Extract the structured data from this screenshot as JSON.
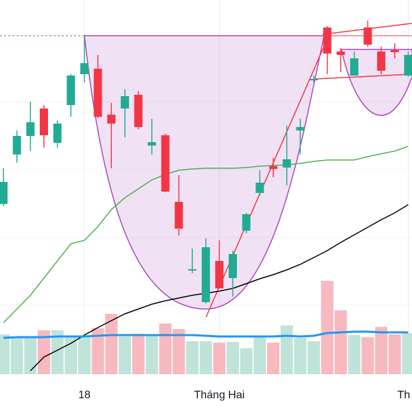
{
  "chart_data": {
    "type": "candlestick",
    "categories": [
      null,
      null,
      null,
      null,
      null,
      null,
      "18",
      null,
      null,
      null,
      null,
      null,
      null,
      null,
      null,
      null,
      "Tháng Hai",
      null,
      null,
      null,
      null,
      null,
      null,
      null,
      null,
      null,
      null,
      null,
      null,
      null,
      "Th"
    ],
    "open": [
      303,
      375,
      402,
      442,
      392,
      447,
      492,
      500,
      433,
      442,
      462,
      388,
      403,
      306,
      206,
      160,
      220,
      195,
      264,
      319,
      358,
      356,
      410,
      483,
      560,
      525,
      490,
      560,
      525,
      527,
      490
    ],
    "high": [
      355,
      410,
      452,
      447,
      425,
      492,
      548,
      520,
      450,
      470,
      467,
      427,
      405,
      345,
      238,
      253,
      250,
      235,
      290,
      352,
      370,
      417,
      427,
      490,
      562,
      530,
      525,
      570,
      532,
      537,
      525
    ],
    "low": [
      300,
      363,
      380,
      385,
      385,
      430,
      480,
      428,
      355,
      400,
      412,
      375,
      320,
      257,
      202,
      158,
      180,
      168,
      260,
      315,
      342,
      330,
      375,
      480,
      492,
      495,
      490,
      532,
      492,
      515,
      488
    ],
    "close": [
      335,
      402,
      422,
      403,
      420,
      490,
      508,
      430,
      420,
      460,
      415,
      393,
      321,
      267,
      208,
      240,
      180,
      230,
      288,
      334,
      354,
      368,
      415,
      485,
      522,
      520,
      515,
      535,
      497,
      524,
      520
    ],
    "up_color": "#22ab94",
    "down_color": "#f23645",
    "volume": [
      58,
      55,
      55,
      64,
      64,
      56,
      56,
      67,
      88,
      55,
      59,
      57,
      74,
      66,
      48,
      48,
      46,
      47,
      38,
      54,
      46,
      71,
      53,
      48,
      136,
      93,
      57,
      54,
      69,
      58,
      60
    ],
    "volume_up_color": "#bfe3d9",
    "volume_down_color": "#f7b9bf",
    "ylim": [
      0,
      600
    ],
    "y2lim": [
      0,
      545
    ],
    "lines": [
      {
        "color": "#4caf50",
        "values": [
          130,
          150,
          170,
          195,
          220,
          245,
          250,
          270,
          295,
          312,
          325,
          338,
          346,
          352,
          354,
          355,
          355,
          355,
          356,
          358,
          359,
          360,
          362,
          365,
          367,
          367,
          367,
          372,
          376,
          380,
          387
        ]
      },
      {
        "color": "#000000",
        "values": [
          null,
          null,
          60,
          80,
          90,
          100,
          112,
          123,
          133,
          143,
          150,
          157,
          162,
          166,
          170,
          173,
          176,
          180,
          187,
          194,
          200,
          207,
          215,
          225,
          235,
          247,
          258,
          269,
          280,
          290,
          302
        ]
      },
      {
        "color": "#2196f3",
        "axis": "y2",
        "values": [
          53,
          54,
          54,
          54,
          55,
          55,
          55,
          56,
          57,
          57,
          57,
          57,
          57,
          57,
          57,
          56,
          55,
          55,
          55,
          55,
          55,
          56,
          55,
          56,
          60,
          61,
          62,
          62,
          61,
          61,
          61
        ]
      }
    ],
    "grid": true
  }
}
